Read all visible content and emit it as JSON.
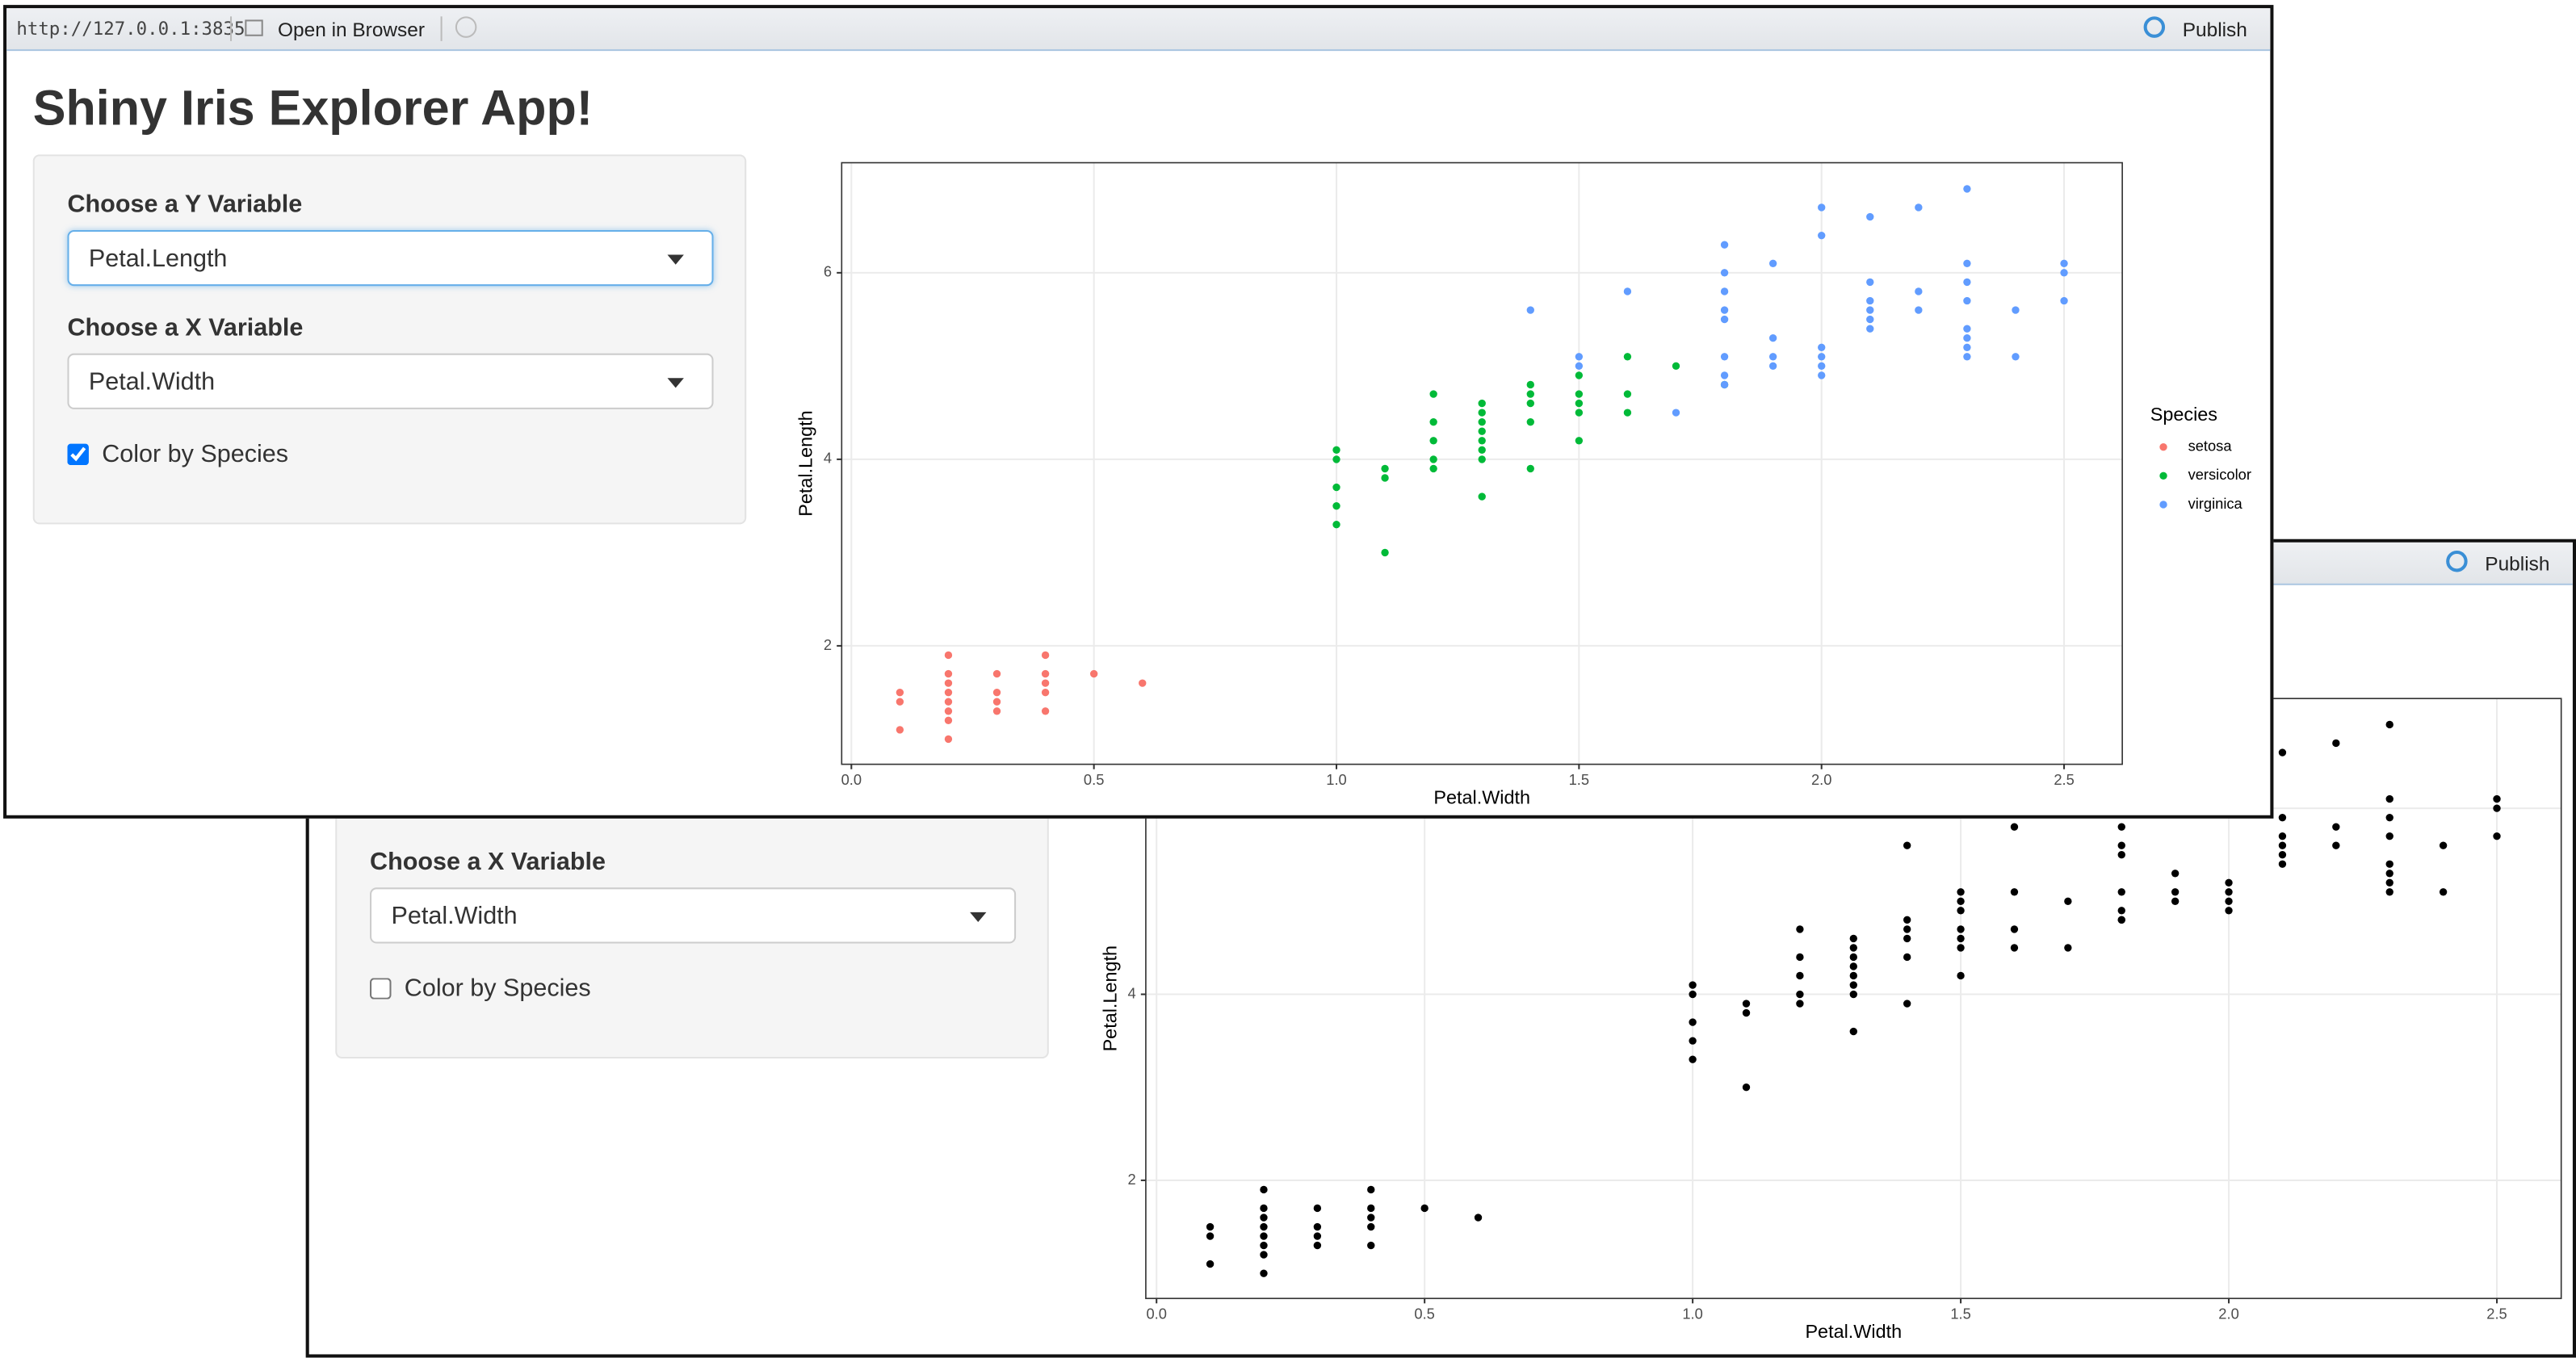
{
  "windows": [
    {
      "toolbar": {
        "url": "http://127.0.0.1:3835",
        "open_in_browser": "Open in Browser",
        "publish": "Publish"
      },
      "title": "Shiny Iris Explorer App!",
      "sidebar": {
        "y_label": "Choose a Y Variable",
        "y_value": "Petal.Length",
        "x_label": "Choose a X Variable",
        "x_value": "Petal.Width",
        "checkbox_label": "Color by Species",
        "checkbox_checked": true
      }
    },
    {
      "toolbar": {
        "publish": "Publish"
      },
      "sidebar": {
        "x_label": "Choose a X Variable",
        "x_value": "Petal.Width",
        "checkbox_label": "Color by Species",
        "checkbox_checked": false
      }
    }
  ],
  "chart_data": [
    {
      "type": "scatter",
      "x_label": "Petal.Width",
      "y_label": "Petal.Length",
      "xlim": [
        -0.02,
        2.62
      ],
      "ylim": [
        0.73,
        7.18
      ],
      "xticks": [
        {
          "value": 0,
          "label": "0.0"
        },
        0.5,
        {
          "value": 1,
          "label": "1.0"
        },
        1.5,
        {
          "value": 2,
          "label": "2.0"
        },
        2.5
      ],
      "yticks": [
        2,
        4,
        6
      ],
      "grid": true,
      "legend_title": "Species",
      "legend": "right",
      "series": [
        {
          "name": "setosa",
          "color": "#F8766D",
          "x": [
            0.1,
            0.1,
            0.1,
            0.2,
            0.2,
            0.2,
            0.2,
            0.2,
            0.2,
            0.2,
            0.2,
            0.3,
            0.3,
            0.3,
            0.3,
            0.4,
            0.4,
            0.4,
            0.4,
            0.4,
            0.5,
            0.6
          ],
          "y": [
            1.5,
            1.4,
            1.1,
            1.4,
            1.3,
            1.5,
            1.6,
            1.7,
            1.0,
            1.9,
            1.2,
            1.4,
            1.7,
            1.5,
            1.3,
            1.7,
            1.5,
            1.3,
            1.6,
            1.9,
            1.7,
            1.6
          ]
        },
        {
          "name": "versicolor",
          "color": "#00BA38",
          "x": [
            1.0,
            1.0,
            1.0,
            1.0,
            1.0,
            1.1,
            1.1,
            1.1,
            1.2,
            1.2,
            1.2,
            1.2,
            1.2,
            1.3,
            1.3,
            1.3,
            1.3,
            1.3,
            1.3,
            1.3,
            1.3,
            1.4,
            1.4,
            1.4,
            1.4,
            1.4,
            1.5,
            1.5,
            1.5,
            1.5,
            1.5,
            1.6,
            1.6,
            1.6,
            1.7,
            1.8
          ],
          "y": [
            3.3,
            3.5,
            4.0,
            4.1,
            3.7,
            3.9,
            3.8,
            3.0,
            4.7,
            3.9,
            4.4,
            4.0,
            4.2,
            4.0,
            4.5,
            4.6,
            3.6,
            4.3,
            4.4,
            4.1,
            4.2,
            4.7,
            3.9,
            4.4,
            4.8,
            4.6,
            4.5,
            4.9,
            4.6,
            4.2,
            4.7,
            4.7,
            5.1,
            4.5,
            5.0,
            4.8
          ]
        },
        {
          "name": "virginica",
          "color": "#619CFF",
          "x": [
            1.4,
            1.5,
            1.5,
            1.6,
            1.7,
            1.8,
            1.8,
            1.8,
            1.8,
            1.8,
            1.8,
            1.8,
            1.8,
            1.9,
            1.9,
            1.9,
            1.9,
            2.0,
            2.0,
            2.0,
            2.0,
            2.0,
            2.0,
            2.1,
            2.1,
            2.1,
            2.1,
            2.1,
            2.1,
            2.2,
            2.2,
            2.2,
            2.3,
            2.3,
            2.3,
            2.3,
            2.3,
            2.3,
            2.3,
            2.3,
            2.4,
            2.4,
            2.5,
            2.5,
            2.5
          ],
          "y": [
            5.6,
            5.0,
            5.1,
            5.8,
            4.5,
            5.6,
            6.3,
            5.8,
            5.5,
            4.9,
            6.0,
            4.8,
            5.1,
            5.1,
            5.3,
            6.1,
            5.0,
            5.1,
            5.0,
            4.9,
            6.7,
            6.4,
            5.2,
            5.9,
            6.6,
            5.5,
            5.7,
            5.6,
            5.4,
            5.8,
            6.7,
            5.6,
            5.3,
            6.9,
            5.7,
            6.1,
            5.1,
            5.9,
            5.2,
            5.4,
            5.1,
            5.6,
            6.0,
            6.1,
            5.7
          ]
        }
      ]
    },
    {
      "type": "scatter",
      "x_label": "Petal.Width",
      "y_label": "Petal.Length",
      "xlim": [
        -0.02,
        2.62
      ],
      "ylim": [
        0.73,
        7.18
      ],
      "xticks": [
        {
          "value": 0,
          "label": "0.0"
        },
        0.5,
        {
          "value": 1,
          "label": "1.0"
        },
        1.5,
        {
          "value": 2,
          "label": "2.0"
        },
        2.5
      ],
      "yticks": [
        2,
        4,
        6
      ],
      "grid": true,
      "series": [
        {
          "color": "#000000",
          "x": [
            0.1,
            0.1,
            0.1,
            0.2,
            0.2,
            0.2,
            0.2,
            0.2,
            0.2,
            0.2,
            0.2,
            0.3,
            0.3,
            0.3,
            0.3,
            0.4,
            0.4,
            0.4,
            0.4,
            0.4,
            0.5,
            0.6,
            1.0,
            1.0,
            1.0,
            1.0,
            1.0,
            1.1,
            1.1,
            1.1,
            1.2,
            1.2,
            1.2,
            1.2,
            1.2,
            1.3,
            1.3,
            1.3,
            1.3,
            1.3,
            1.3,
            1.3,
            1.3,
            1.4,
            1.4,
            1.4,
            1.4,
            1.4,
            1.5,
            1.5,
            1.5,
            1.5,
            1.5,
            1.6,
            1.6,
            1.6,
            1.7,
            1.8,
            1.4,
            1.5,
            1.5,
            1.6,
            1.7,
            1.8,
            1.8,
            1.8,
            1.8,
            1.8,
            1.8,
            1.8,
            1.8,
            1.9,
            1.9,
            1.9,
            1.9,
            2.0,
            2.0,
            2.0,
            2.0,
            2.0,
            2.0,
            2.1,
            2.1,
            2.1,
            2.1,
            2.1,
            2.1,
            2.2,
            2.2,
            2.2,
            2.3,
            2.3,
            2.3,
            2.3,
            2.3,
            2.3,
            2.3,
            2.3,
            2.4,
            2.4,
            2.5,
            2.5,
            2.5
          ],
          "y": [
            1.5,
            1.4,
            1.1,
            1.4,
            1.3,
            1.5,
            1.6,
            1.7,
            1.0,
            1.9,
            1.2,
            1.4,
            1.7,
            1.5,
            1.3,
            1.7,
            1.5,
            1.3,
            1.6,
            1.9,
            1.7,
            1.6,
            3.3,
            3.5,
            4.0,
            4.1,
            3.7,
            3.9,
            3.8,
            3.0,
            4.7,
            3.9,
            4.4,
            4.0,
            4.2,
            4.0,
            4.5,
            4.6,
            3.6,
            4.3,
            4.4,
            4.1,
            4.2,
            4.7,
            3.9,
            4.4,
            4.8,
            4.6,
            4.5,
            4.9,
            4.6,
            4.2,
            4.7,
            4.7,
            5.1,
            4.5,
            5.0,
            4.8,
            5.6,
            5.0,
            5.1,
            5.8,
            4.5,
            5.6,
            6.3,
            5.8,
            5.5,
            4.9,
            6.0,
            4.8,
            5.1,
            5.1,
            5.3,
            6.1,
            5.0,
            5.1,
            5.0,
            4.9,
            6.7,
            6.4,
            5.2,
            5.9,
            6.6,
            5.5,
            5.7,
            5.6,
            5.4,
            5.8,
            6.7,
            5.6,
            5.3,
            6.9,
            5.7,
            6.1,
            5.1,
            5.9,
            5.2,
            5.4,
            5.1,
            5.6,
            6.0,
            6.1,
            5.7
          ]
        }
      ]
    }
  ]
}
